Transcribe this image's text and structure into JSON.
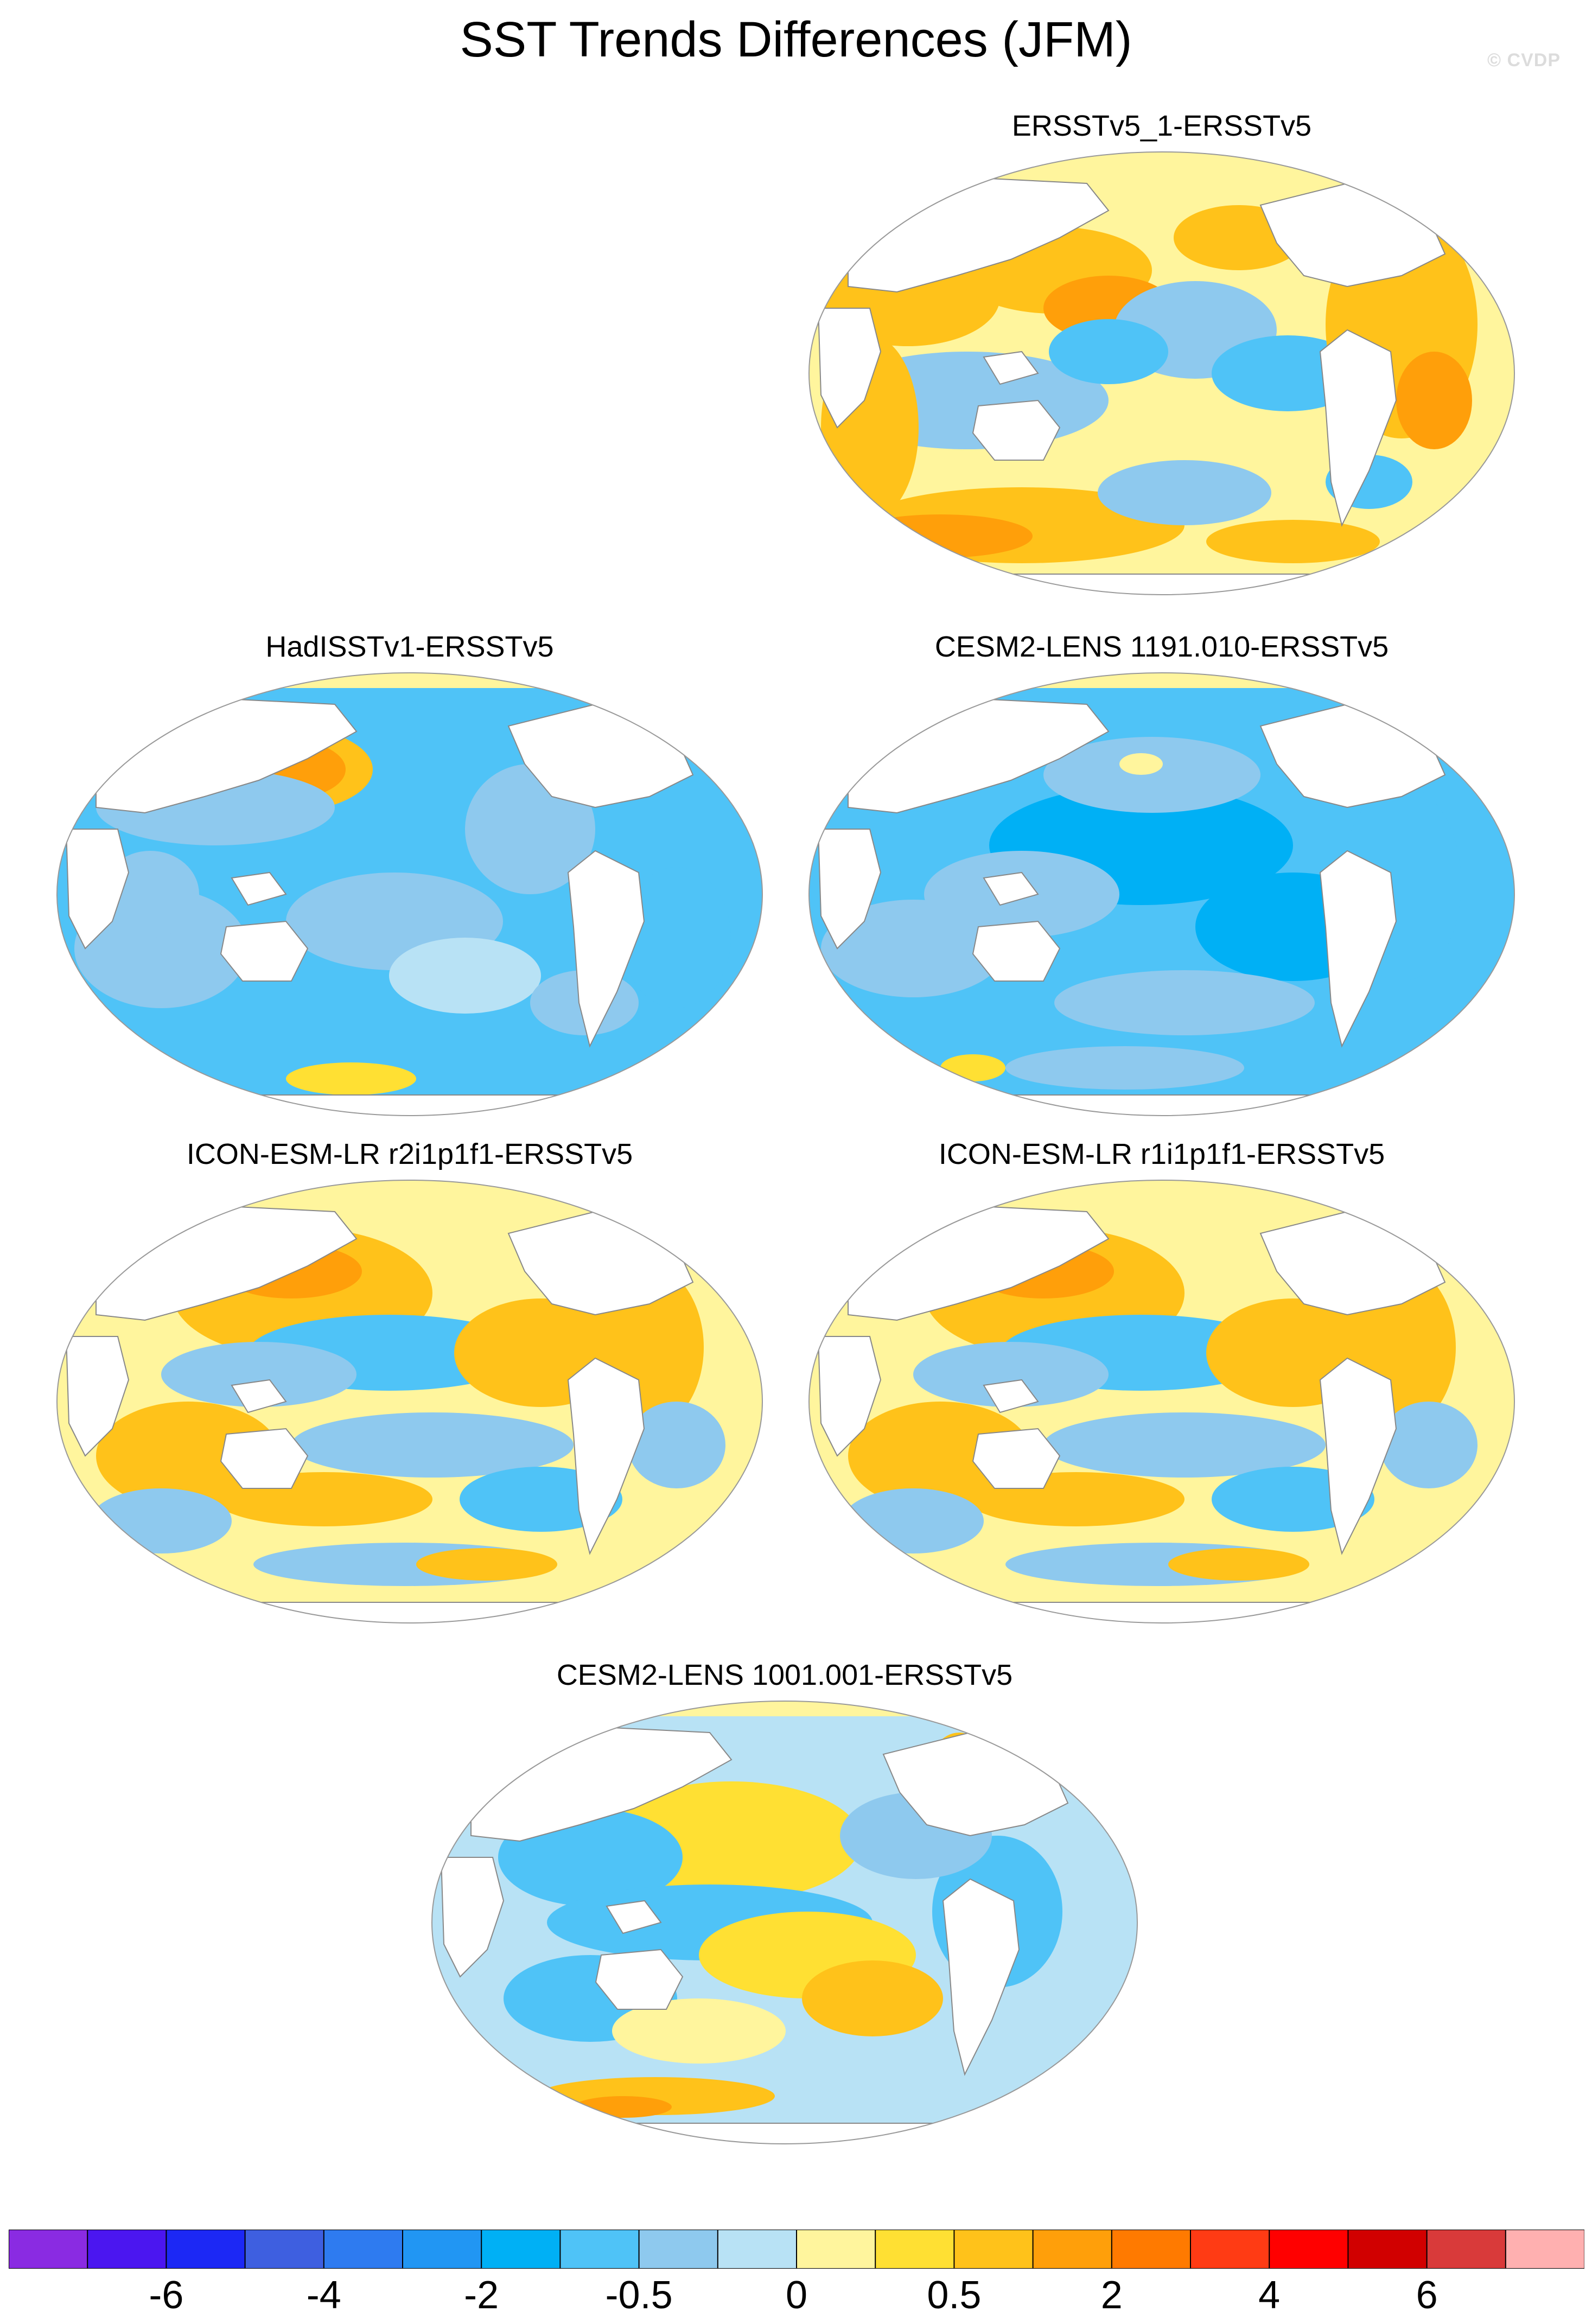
{
  "title": "SST Trends Differences (JFM)",
  "watermark": "© CVDP",
  "panels": [
    {
      "title": "ERSSTv5_1-ERSSTv5",
      "style": "warm"
    },
    {
      "title": "HadISSTv1-ERSSTv5",
      "style": "cool-npac-warm"
    },
    {
      "title": "CESM2-LENS 1191.010-ERSSTv5",
      "style": "cool"
    },
    {
      "title": "ICON-ESM-LR r2i1p1f1-ERSSTv5",
      "style": "mixed-warm"
    },
    {
      "title": "ICON-ESM-LR r1i1p1f1-ERSSTv5",
      "style": "mixed-warm"
    },
    {
      "title": "CESM2-LENS 1001.001-ERSSTv5",
      "style": "mixed-cool"
    }
  ],
  "colorbar": {
    "colors": [
      "#8a2be2",
      "#4b16f0",
      "#1c28f5",
      "#3e5fe0",
      "#2e7bf0",
      "#2196f3",
      "#00b0f5",
      "#4fc3f7",
      "#8ec9ee",
      "#b8e2f5",
      "#fff59d",
      "#ffe033",
      "#ffc21a",
      "#ff9f0a",
      "#ff7a00",
      "#ff3b14",
      "#ff0000",
      "#d10000",
      "#d93a3a",
      "#ffb0b0"
    ],
    "tick_labels": [
      "-6",
      "-4",
      "-2",
      "-0.5",
      "0",
      "0.5",
      "2",
      "4",
      "6"
    ],
    "tick_boundary_index": [
      2,
      4,
      6,
      8,
      10,
      12,
      14,
      16,
      18
    ]
  }
}
